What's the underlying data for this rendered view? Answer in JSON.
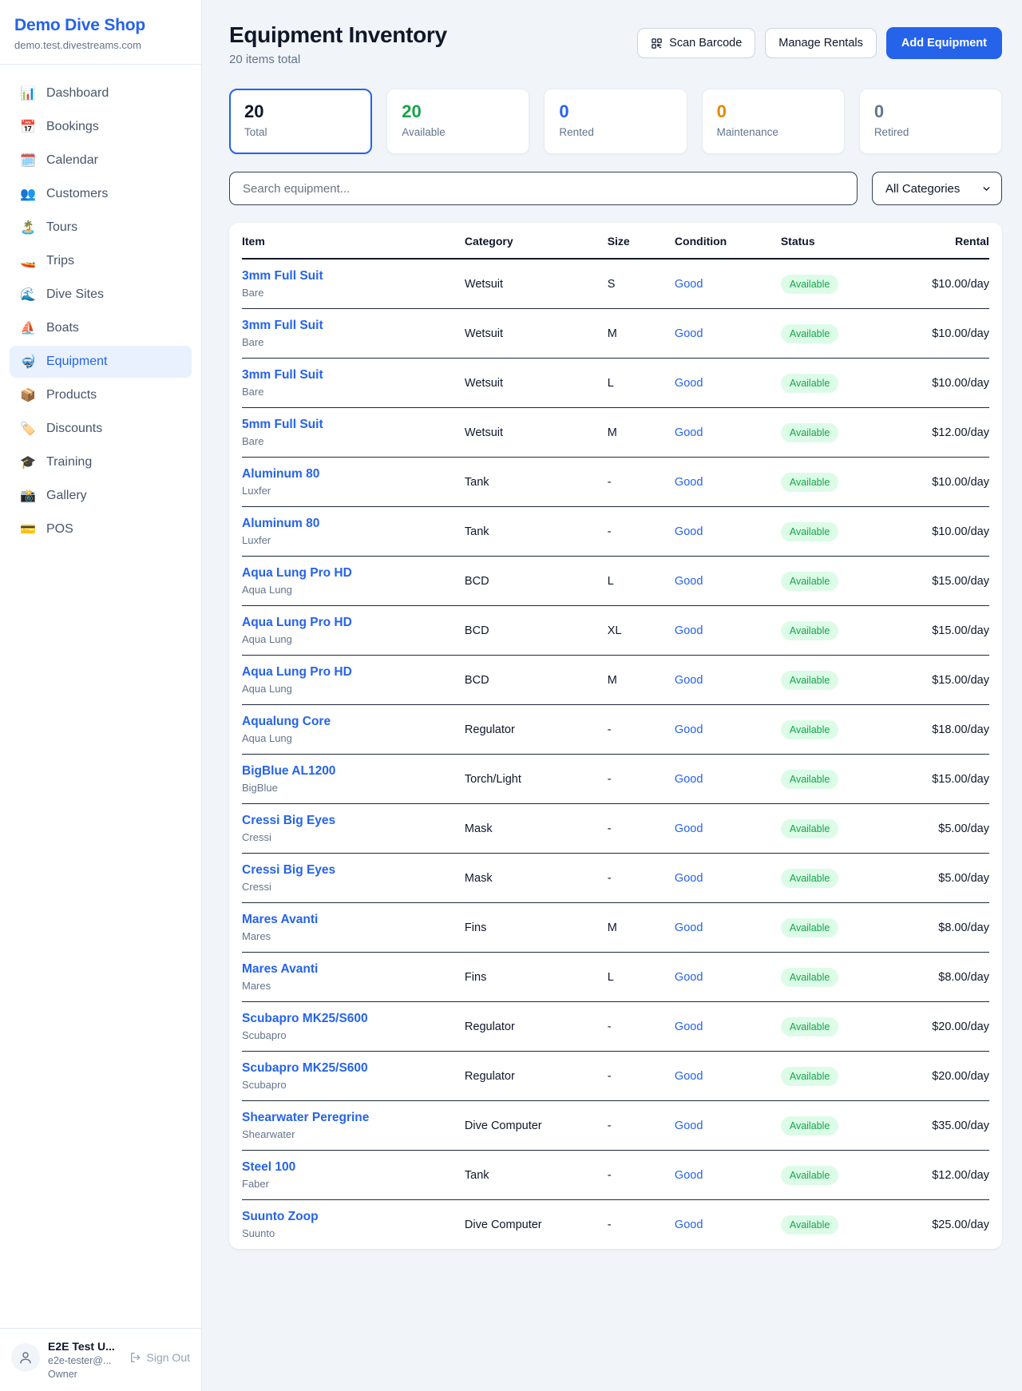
{
  "sidebar": {
    "brand": {
      "name": "Demo Dive Shop",
      "domain": "demo.test.divestreams.com"
    },
    "items": [
      {
        "id": "dashboard",
        "icon": "📊",
        "label": "Dashboard",
        "active": false
      },
      {
        "id": "bookings",
        "icon": "📅",
        "label": "Bookings",
        "active": false
      },
      {
        "id": "calendar",
        "icon": "🗓️",
        "label": "Calendar",
        "active": false
      },
      {
        "id": "customers",
        "icon": "👥",
        "label": "Customers",
        "active": false
      },
      {
        "id": "tours",
        "icon": "🏝️",
        "label": "Tours",
        "active": false
      },
      {
        "id": "trips",
        "icon": "🚤",
        "label": "Trips",
        "active": false
      },
      {
        "id": "dive-sites",
        "icon": "🌊",
        "label": "Dive Sites",
        "active": false
      },
      {
        "id": "boats",
        "icon": "⛵",
        "label": "Boats",
        "active": false
      },
      {
        "id": "equipment",
        "icon": "🤿",
        "label": "Equipment",
        "active": true
      },
      {
        "id": "products",
        "icon": "📦",
        "label": "Products",
        "active": false
      },
      {
        "id": "discounts",
        "icon": "🏷️",
        "label": "Discounts",
        "active": false
      },
      {
        "id": "training",
        "icon": "🎓",
        "label": "Training",
        "active": false
      },
      {
        "id": "gallery",
        "icon": "📸",
        "label": "Gallery",
        "active": false
      },
      {
        "id": "pos",
        "icon": "💳",
        "label": "POS",
        "active": false
      }
    ],
    "user": {
      "name": "E2E Test U...",
      "email": "e2e-tester@...",
      "role": "Owner",
      "sign_out_label": "Sign Out"
    }
  },
  "header": {
    "title": "Equipment Inventory",
    "subtitle": "20 items total",
    "scan_barcode_label": "Scan Barcode",
    "manage_rentals_label": "Manage Rentals",
    "add_equipment_label": "Add Equipment"
  },
  "stats": [
    {
      "value": "20",
      "label": "Total",
      "color": "#0f172a",
      "selected": true
    },
    {
      "value": "20",
      "label": "Available",
      "color": "#16a34a",
      "selected": false
    },
    {
      "value": "0",
      "label": "Rented",
      "color": "#2563eb",
      "selected": false
    },
    {
      "value": "0",
      "label": "Maintenance",
      "color": "#e08900",
      "selected": false
    },
    {
      "value": "0",
      "label": "Retired",
      "color": "#64748b",
      "selected": false
    }
  ],
  "filters": {
    "search_placeholder": "Search equipment...",
    "category_selected": "All Categories"
  },
  "table": {
    "columns": [
      "Item",
      "Category",
      "Size",
      "Condition",
      "Status",
      "Rental"
    ],
    "rows": [
      {
        "name": "3mm Full Suit",
        "brand": "Bare",
        "category": "Wetsuit",
        "size": "S",
        "condition": "Good",
        "status": "Available",
        "rental": "$10.00/day"
      },
      {
        "name": "3mm Full Suit",
        "brand": "Bare",
        "category": "Wetsuit",
        "size": "M",
        "condition": "Good",
        "status": "Available",
        "rental": "$10.00/day"
      },
      {
        "name": "3mm Full Suit",
        "brand": "Bare",
        "category": "Wetsuit",
        "size": "L",
        "condition": "Good",
        "status": "Available",
        "rental": "$10.00/day"
      },
      {
        "name": "5mm Full Suit",
        "brand": "Bare",
        "category": "Wetsuit",
        "size": "M",
        "condition": "Good",
        "status": "Available",
        "rental": "$12.00/day"
      },
      {
        "name": "Aluminum 80",
        "brand": "Luxfer",
        "category": "Tank",
        "size": "-",
        "condition": "Good",
        "status": "Available",
        "rental": "$10.00/day"
      },
      {
        "name": "Aluminum 80",
        "brand": "Luxfer",
        "category": "Tank",
        "size": "-",
        "condition": "Good",
        "status": "Available",
        "rental": "$10.00/day"
      },
      {
        "name": "Aqua Lung Pro HD",
        "brand": "Aqua Lung",
        "category": "BCD",
        "size": "L",
        "condition": "Good",
        "status": "Available",
        "rental": "$15.00/day"
      },
      {
        "name": "Aqua Lung Pro HD",
        "brand": "Aqua Lung",
        "category": "BCD",
        "size": "XL",
        "condition": "Good",
        "status": "Available",
        "rental": "$15.00/day"
      },
      {
        "name": "Aqua Lung Pro HD",
        "brand": "Aqua Lung",
        "category": "BCD",
        "size": "M",
        "condition": "Good",
        "status": "Available",
        "rental": "$15.00/day"
      },
      {
        "name": "Aqualung Core",
        "brand": "Aqua Lung",
        "category": "Regulator",
        "size": "-",
        "condition": "Good",
        "status": "Available",
        "rental": "$18.00/day"
      },
      {
        "name": "BigBlue AL1200",
        "brand": "BigBlue",
        "category": "Torch/Light",
        "size": "-",
        "condition": "Good",
        "status": "Available",
        "rental": "$15.00/day"
      },
      {
        "name": "Cressi Big Eyes",
        "brand": "Cressi",
        "category": "Mask",
        "size": "-",
        "condition": "Good",
        "status": "Available",
        "rental": "$5.00/day"
      },
      {
        "name": "Cressi Big Eyes",
        "brand": "Cressi",
        "category": "Mask",
        "size": "-",
        "condition": "Good",
        "status": "Available",
        "rental": "$5.00/day"
      },
      {
        "name": "Mares Avanti",
        "brand": "Mares",
        "category": "Fins",
        "size": "M",
        "condition": "Good",
        "status": "Available",
        "rental": "$8.00/day"
      },
      {
        "name": "Mares Avanti",
        "brand": "Mares",
        "category": "Fins",
        "size": "L",
        "condition": "Good",
        "status": "Available",
        "rental": "$8.00/day"
      },
      {
        "name": "Scubapro MK25/S600",
        "brand": "Scubapro",
        "category": "Regulator",
        "size": "-",
        "condition": "Good",
        "status": "Available",
        "rental": "$20.00/day"
      },
      {
        "name": "Scubapro MK25/S600",
        "brand": "Scubapro",
        "category": "Regulator",
        "size": "-",
        "condition": "Good",
        "status": "Available",
        "rental": "$20.00/day"
      },
      {
        "name": "Shearwater Peregrine",
        "brand": "Shearwater",
        "category": "Dive Computer",
        "size": "-",
        "condition": "Good",
        "status": "Available",
        "rental": "$35.00/day"
      },
      {
        "name": "Steel 100",
        "brand": "Faber",
        "category": "Tank",
        "size": "-",
        "condition": "Good",
        "status": "Available",
        "rental": "$12.00/day"
      },
      {
        "name": "Suunto Zoop",
        "brand": "Suunto",
        "category": "Dive Computer",
        "size": "-",
        "condition": "Good",
        "status": "Available",
        "rental": "$25.00/day"
      }
    ]
  },
  "colors": {
    "accent_blue": "#2563eb",
    "available_green": "#16a34a",
    "maintenance_orange": "#e08900",
    "badge_bg": "#dcfce7",
    "page_bg": "#f1f5f9"
  }
}
